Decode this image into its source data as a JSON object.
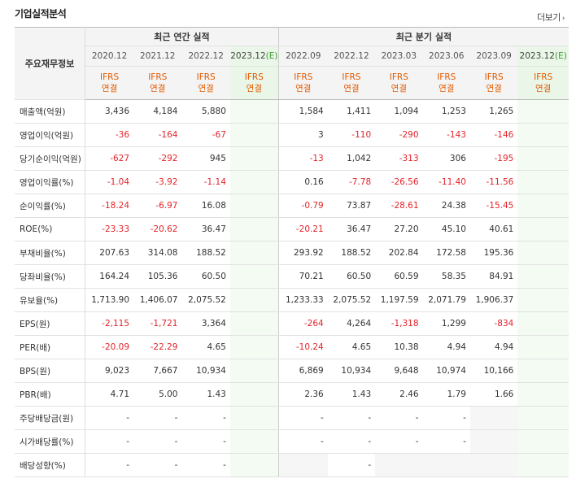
{
  "header": {
    "title": "기업실적분석",
    "more_label": "더보기",
    "more_icon": "chevron-right-icon"
  },
  "columns": {
    "row_header": "주요재무정보",
    "annual_group": "최근 연간 실적",
    "quarter_group": "최근 분기 실적",
    "annual_periods": [
      "2020.12",
      "2021.12",
      "2022.12",
      "2023.12"
    ],
    "quarter_periods": [
      "2022.09",
      "2022.12",
      "2023.03",
      "2023.06",
      "2023.09",
      "2023.12"
    ],
    "estimate_mark": "(E)",
    "basis_line1": "IFRS",
    "basis_line2": "연결"
  },
  "rows": [
    {
      "label": "매출액(억원)",
      "annual": [
        "3,436",
        "4,184",
        "5,880",
        ""
      ],
      "quarter": [
        "1,584",
        "1,411",
        "1,094",
        "1,253",
        "1,265",
        ""
      ]
    },
    {
      "label": "영업이익(억원)",
      "annual": [
        "-36",
        "-164",
        "-67",
        ""
      ],
      "quarter": [
        "3",
        "-110",
        "-290",
        "-143",
        "-146",
        ""
      ]
    },
    {
      "label": "당기순이익(억원)",
      "annual": [
        "-627",
        "-292",
        "945",
        ""
      ],
      "quarter": [
        "-13",
        "1,042",
        "-313",
        "306",
        "-195",
        ""
      ]
    },
    {
      "label": "영업이익률(%)",
      "annual": [
        "-1.04",
        "-3.92",
        "-1.14",
        ""
      ],
      "quarter": [
        "0.16",
        "-7.78",
        "-26.56",
        "-11.40",
        "-11.56",
        ""
      ]
    },
    {
      "label": "순이익률(%)",
      "annual": [
        "-18.24",
        "-6.97",
        "16.08",
        ""
      ],
      "quarter": [
        "-0.79",
        "73.87",
        "-28.61",
        "24.38",
        "-15.45",
        ""
      ]
    },
    {
      "label": "ROE(%)",
      "annual": [
        "-23.33",
        "-20.62",
        "36.47",
        ""
      ],
      "quarter": [
        "-20.21",
        "36.47",
        "27.20",
        "45.10",
        "40.61",
        ""
      ]
    },
    {
      "label": "부채비율(%)",
      "annual": [
        "207.63",
        "314.08",
        "188.52",
        ""
      ],
      "quarter": [
        "293.92",
        "188.52",
        "202.84",
        "172.58",
        "195.36",
        ""
      ]
    },
    {
      "label": "당좌비율(%)",
      "annual": [
        "164.24",
        "105.36",
        "60.50",
        ""
      ],
      "quarter": [
        "70.21",
        "60.50",
        "60.59",
        "58.35",
        "84.91",
        ""
      ]
    },
    {
      "label": "유보율(%)",
      "annual": [
        "1,713.90",
        "1,406.07",
        "2,075.52",
        ""
      ],
      "quarter": [
        "1,233.33",
        "2,075.52",
        "1,197.59",
        "2,071.79",
        "1,906.37",
        ""
      ]
    },
    {
      "label": "EPS(원)",
      "annual": [
        "-2,115",
        "-1,721",
        "3,364",
        ""
      ],
      "quarter": [
        "-264",
        "4,264",
        "-1,318",
        "1,299",
        "-834",
        ""
      ]
    },
    {
      "label": "PER(배)",
      "annual": [
        "-20.09",
        "-22.29",
        "4.65",
        ""
      ],
      "quarter": [
        "-10.24",
        "4.65",
        "10.38",
        "4.94",
        "4.94",
        ""
      ]
    },
    {
      "label": "BPS(원)",
      "annual": [
        "9,023",
        "7,667",
        "10,934",
        ""
      ],
      "quarter": [
        "6,869",
        "10,934",
        "9,648",
        "10,974",
        "10,166",
        ""
      ]
    },
    {
      "label": "PBR(배)",
      "annual": [
        "4.71",
        "5.00",
        "1.43",
        ""
      ],
      "quarter": [
        "2.36",
        "1.43",
        "2.46",
        "1.79",
        "1.66",
        ""
      ]
    },
    {
      "label": "주당배당금(원)",
      "annual": [
        "-",
        "-",
        "-",
        ""
      ],
      "quarter": [
        "-",
        "-",
        "-",
        "-",
        "",
        ""
      ]
    },
    {
      "label": "시가배당률(%)",
      "annual": [
        "-",
        "-",
        "-",
        ""
      ],
      "quarter": [
        "-",
        "-",
        "-",
        "-",
        "",
        ""
      ]
    },
    {
      "label": "배당성향(%)",
      "annual": [
        "-",
        "-",
        "-",
        ""
      ],
      "quarter": [
        "",
        "-",
        "",
        "",
        "",
        ""
      ]
    }
  ],
  "colors": {
    "negative": "#e4232a",
    "basis": "#e05a00",
    "estimate_bg": "#eaf7e8",
    "estimate_mark": "#3a9c2f"
  }
}
